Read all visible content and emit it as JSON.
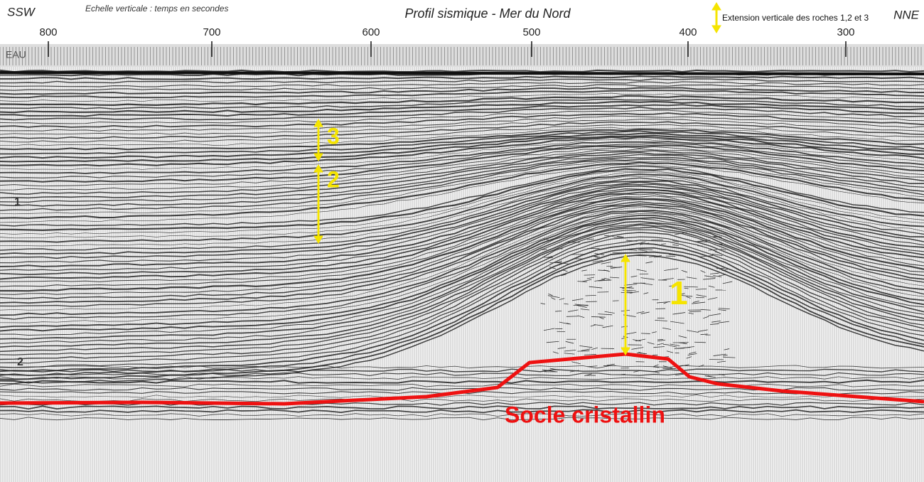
{
  "header": {
    "left": "SSW",
    "subtitle": "Echelle verticale : temps en secondes",
    "title": "Profil sismique - Mer du Nord",
    "legend": "Extension verticale des roches 1,2 et 3",
    "right": "NNE"
  },
  "scale": [
    "800",
    "700",
    "600",
    "500",
    "400",
    "300"
  ],
  "left_labels": {
    "water": "EAU",
    "t1": "1",
    "t2": "2"
  },
  "annotations": {
    "rock3": "3",
    "rock2": "2",
    "rock1": "1",
    "basement": "Socle cristallin"
  }
}
